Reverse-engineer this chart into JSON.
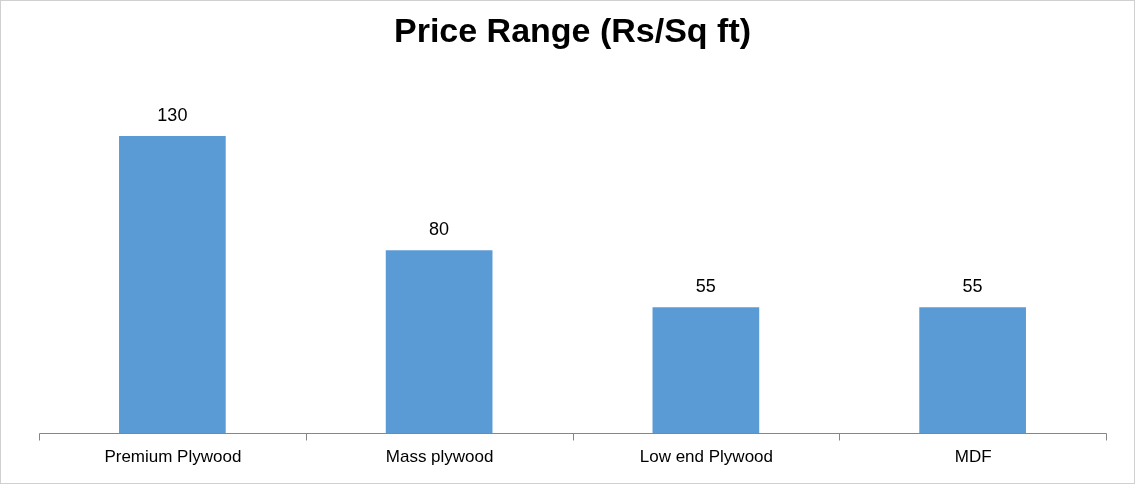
{
  "chart_data": {
    "type": "bar",
    "title": "Price Range (Rs/Sq ft)",
    "categories": [
      "Premium  Plywood",
      "Mass plywood",
      "Low end Plywood",
      "MDF"
    ],
    "values": [
      130,
      80,
      55,
      55
    ],
    "color": "#5b9bd5",
    "data_labels": true
  }
}
